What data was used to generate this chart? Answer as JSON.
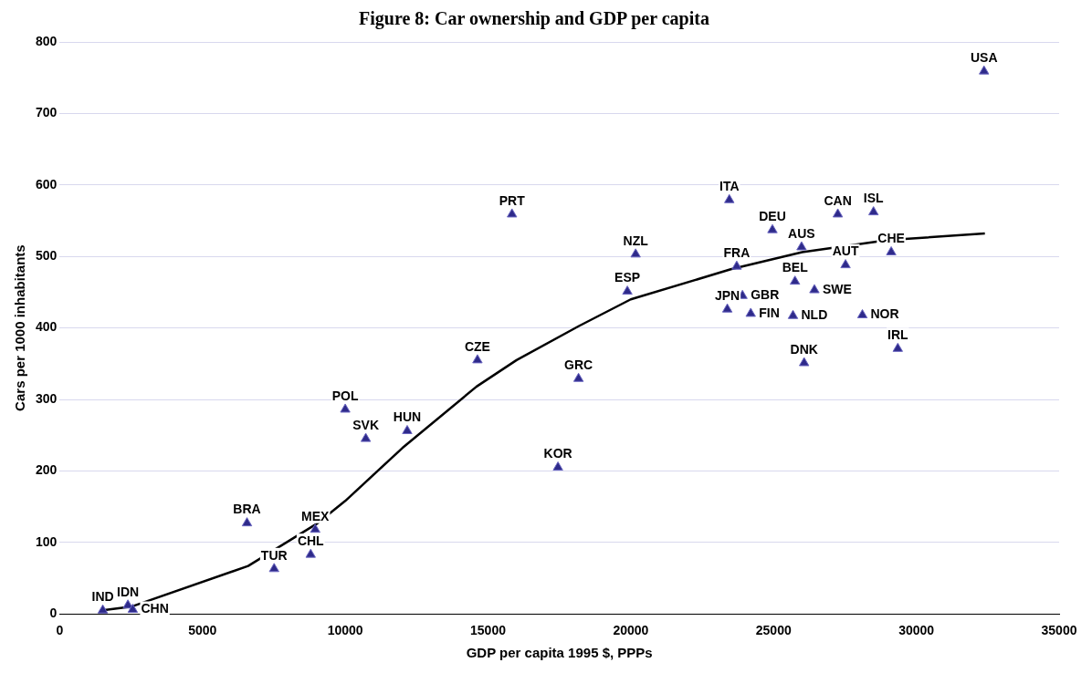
{
  "chart_data": {
    "type": "scatter",
    "title": "Figure 8: Car ownership and GDP per capita",
    "xlabel": "GDP per capita 1995 $, PPPs",
    "ylabel": "Cars per 1000 inhabitants",
    "xlim": [
      0,
      35000
    ],
    "xticks": [
      0,
      5000,
      10000,
      15000,
      20000,
      25000,
      30000,
      35000
    ],
    "ylim": [
      0,
      800
    ],
    "yticks": [
      0,
      100,
      200,
      300,
      400,
      500,
      600,
      700,
      800
    ],
    "grid": "y",
    "legend": false,
    "series": [
      {
        "type": "line",
        "color": "#000000",
        "marker": "none",
        "line_style": "solid",
        "x": [
          1500,
          2500,
          6600,
          9000,
          10000,
          12000,
          14600,
          16000,
          18200,
          20000,
          23500,
          26000,
          29000,
          32400
        ],
        "values": [
          5,
          10,
          67,
          126,
          158,
          232,
          318,
          355,
          403,
          440,
          482,
          506,
          523,
          532
        ]
      },
      {
        "type": "scatter",
        "color": "#2e2a8a",
        "marker": "triangle",
        "x": [
          1510,
          2390,
          2560,
          6560,
          7510,
          8790,
          8950,
          10000,
          10720,
          12170,
          14630,
          17450,
          18170,
          15840,
          19880,
          20170,
          23450,
          23380,
          23910,
          23710,
          24200,
          24960,
          25750,
          25680,
          25980,
          26070,
          26430,
          27250,
          27520,
          28110,
          28500,
          29120,
          29350,
          32370
        ],
        "values": [
          5,
          12,
          6,
          127,
          63,
          83,
          118,
          286,
          245,
          256,
          355,
          205,
          329,
          559,
          451,
          503,
          579,
          426,
          445,
          486,
          420,
          537,
          465,
          417,
          513,
          351,
          453,
          559,
          488,
          418,
          562,
          506,
          371,
          759
        ],
        "value_labels": [
          "IND",
          "IDN",
          "CHN",
          "BRA",
          "TUR",
          "CHL",
          "MEX",
          "POL",
          "SVK",
          "HUN",
          "CZE",
          "KOR",
          "GRC",
          "PRT",
          "ESP",
          "NZL",
          "ITA",
          "JPN",
          "GBR",
          "FRA",
          "FIN",
          "DEU",
          "BEL",
          "NLD",
          "AUS",
          "DNK",
          "SWE",
          "CAN",
          "AUT",
          "NOR",
          "ISL",
          "CHE",
          "IRL",
          "USA"
        ]
      }
    ]
  }
}
